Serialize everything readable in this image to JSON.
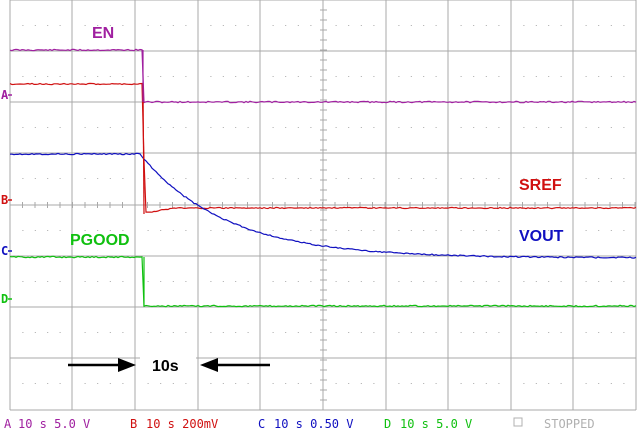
{
  "colors": {
    "ch_a": "#a020a0",
    "ch_b": "#d01010",
    "ch_c": "#1010c0",
    "ch_d": "#10c010",
    "grid": "#a8a8a8",
    "arrow": "#000000",
    "stopped": "#b0b0b0"
  },
  "labels": {
    "en": "EN",
    "sref": "SREF",
    "vout": "VOUT",
    "pgood": "PGOOD",
    "time_span": "10s"
  },
  "channel_markers": {
    "a": "A",
    "b": "B",
    "c": "C",
    "d": "D"
  },
  "status_bar": {
    "ch_a": {
      "marker": "A",
      "text": "10 s 5.0 V"
    },
    "ch_b": {
      "marker": "B",
      "text": "10 s 200mV"
    },
    "ch_c": {
      "marker": "C",
      "text": "10 s 0.50 V"
    },
    "ch_d": {
      "marker": "D",
      "text": "10 s 5.0 V"
    },
    "state": "STOPPED"
  },
  "icons": {
    "left_arrow": "arrow-right-icon",
    "right_arrow": "arrow-left-icon",
    "stopped": "stopped-square-icon"
  }
}
